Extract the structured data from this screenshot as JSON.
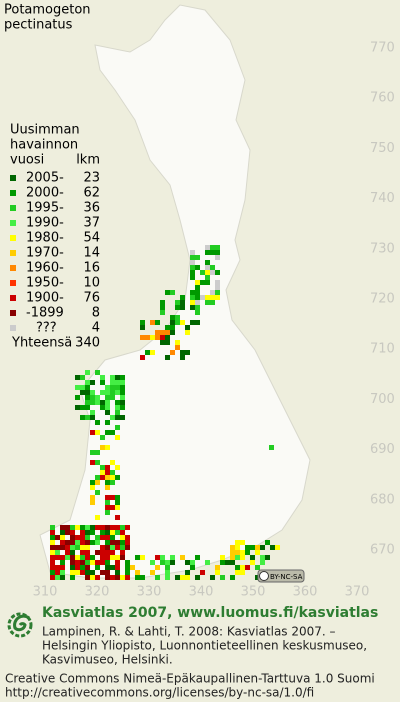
{
  "header": {
    "title_lines": [
      "Potamogeton",
      "pectinatus"
    ]
  },
  "legend": {
    "heading_lines": [
      "Uusimman",
      "havainnon"
    ],
    "year_heading": "vuosi",
    "count_heading": "lkm",
    "rows": [
      {
        "label": "2005-",
        "count": "23",
        "color": "#006600"
      },
      {
        "label": "2000-",
        "count": "62",
        "color": "#009900"
      },
      {
        "label": "1995-",
        "count": "36",
        "color": "#22cc22"
      },
      {
        "label": "1990-",
        "count": "37",
        "color": "#44ee44"
      },
      {
        "label": "1980-",
        "count": "54",
        "color": "#ffff00"
      },
      {
        "label": "1970-",
        "count": "14",
        "color": "#ffcc00"
      },
      {
        "label": "1960-",
        "count": "16",
        "color": "#ff8800"
      },
      {
        "label": "1950-",
        "count": "10",
        "color": "#ff3300"
      },
      {
        "label": "1900-",
        "count": "76",
        "color": "#cc0000"
      },
      {
        "label": "-1899",
        "count": "8",
        "color": "#880000"
      },
      {
        "label": "???",
        "count": "4",
        "color": "#cccccc"
      }
    ],
    "total_label": "Yhteensä",
    "total_count": "340"
  },
  "map": {
    "north_labels": [
      "770",
      "760",
      "750",
      "740",
      "730",
      "720",
      "710",
      "700",
      "690",
      "680",
      "670"
    ],
    "east_labels": [
      "310",
      "320",
      "330",
      "340",
      "350",
      "360",
      "370"
    ],
    "license_badge": "BY-NC-SA"
  },
  "footer": {
    "site": "Kasviatlas 2007, www.luomus.fi/kasviatlas",
    "citation_lines": [
      "Lampinen, R. & Lahti, T. 2008: Kasviatlas 2007. –",
      "Helsingin Yliopisto, Luonnontieteellinen keskusmuseo,",
      "Kasvimuseo, Helsinki."
    ],
    "license_lines": [
      "Creative Commons Nimeä-Epäkaupallinen-Tarttuva 1.0 Suomi",
      "http://creativecommons.org/licenses/by-nc-sa/1.0/fi"
    ]
  }
}
